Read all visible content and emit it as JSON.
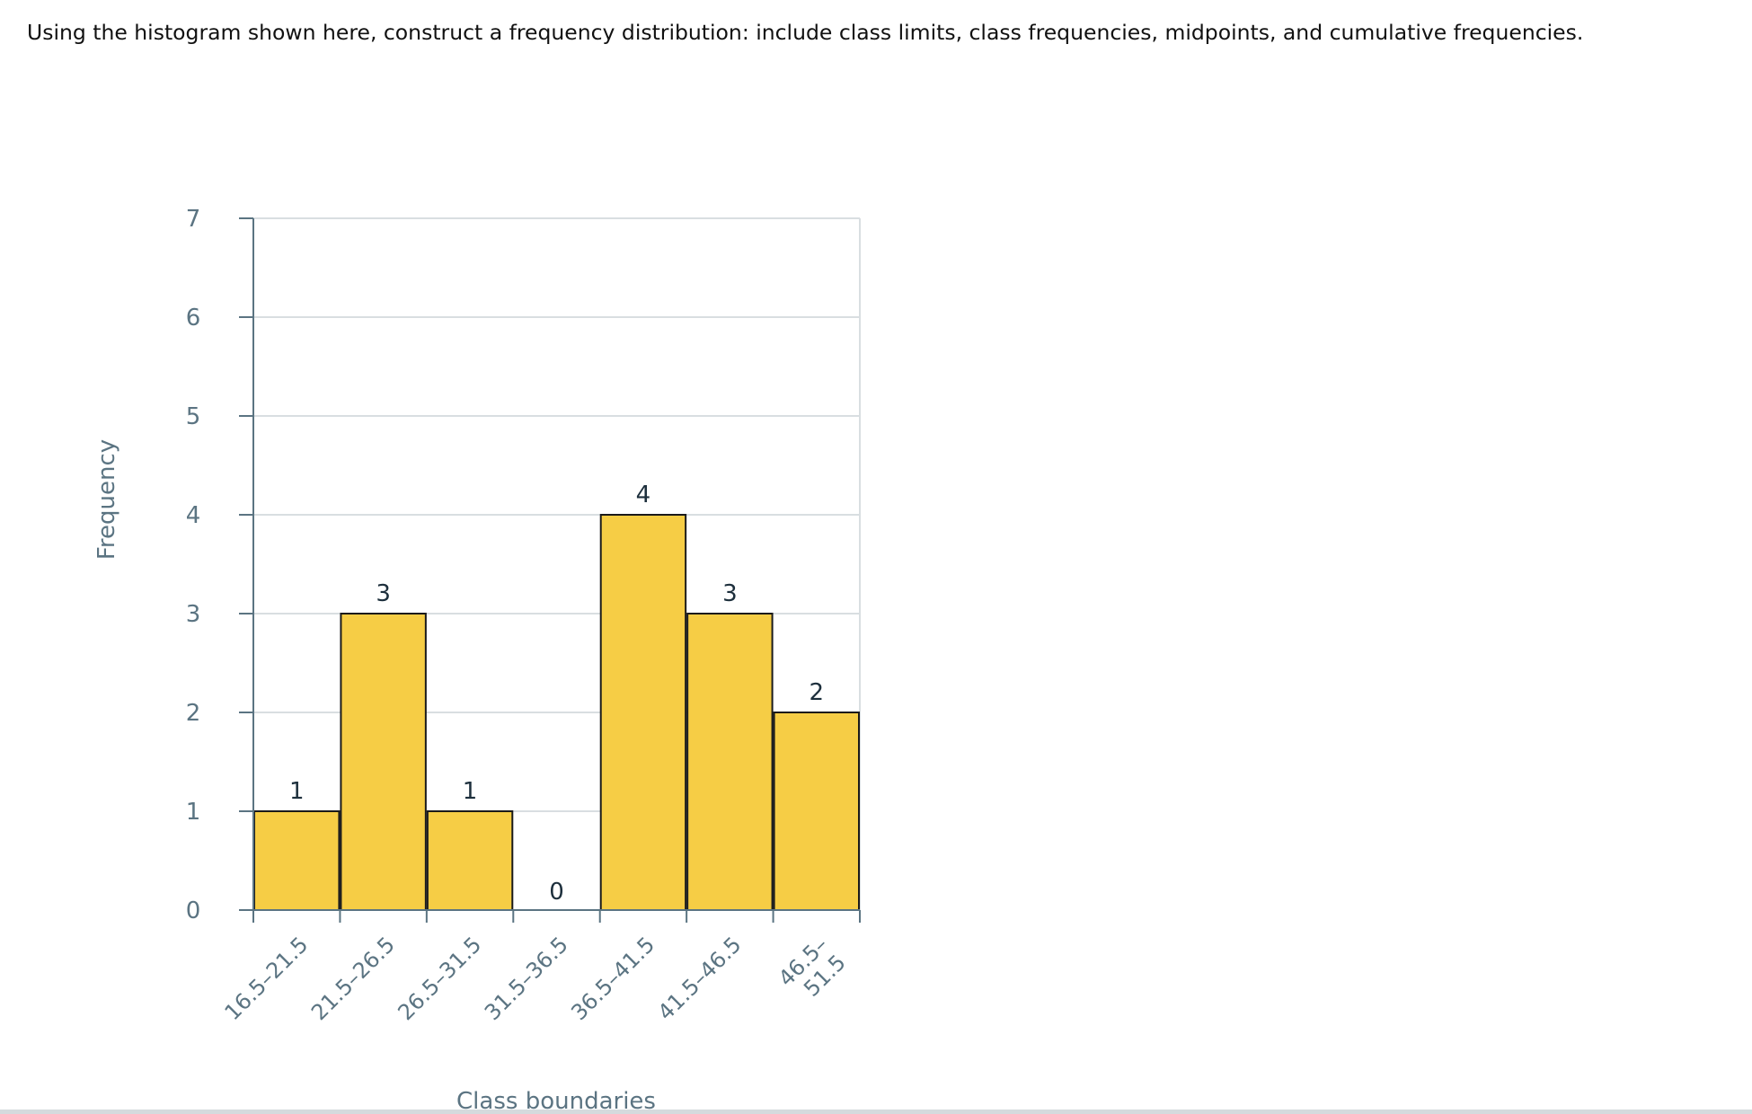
{
  "question": {
    "text": "Using the histogram shown here, construct a frequency distribution: include class limits, class frequencies, midpoints, and cumulative frequencies."
  },
  "colors": {
    "bar_fill": "#f6cd45",
    "bar_stroke": "#1a1a1a",
    "grid": "#d9dee1",
    "axis": "#5b7482",
    "tick_text": "#5b7482",
    "label_text": "#1d2f3c"
  },
  "chart_data": {
    "type": "bar",
    "title": "",
    "xlabel": "Class boundaries",
    "ylabel": "Frequency",
    "ylim": [
      0,
      7
    ],
    "yticks": [
      "0",
      "1",
      "2",
      "3",
      "4",
      "5",
      "6",
      "7"
    ],
    "grid": true,
    "categories": [
      [
        "16.5–21.5"
      ],
      [
        "21.5–26.5"
      ],
      [
        "26.5–31.5"
      ],
      [
        "31.5–36.5"
      ],
      [
        "36.5–41.5"
      ],
      [
        "41.5–46.5"
      ],
      [
        "46.5–",
        "51.5"
      ]
    ],
    "values": [
      1,
      3,
      1,
      0,
      4,
      3,
      2
    ],
    "data_labels": [
      "1",
      "3",
      "1",
      "0",
      "4",
      "3",
      "2"
    ]
  }
}
